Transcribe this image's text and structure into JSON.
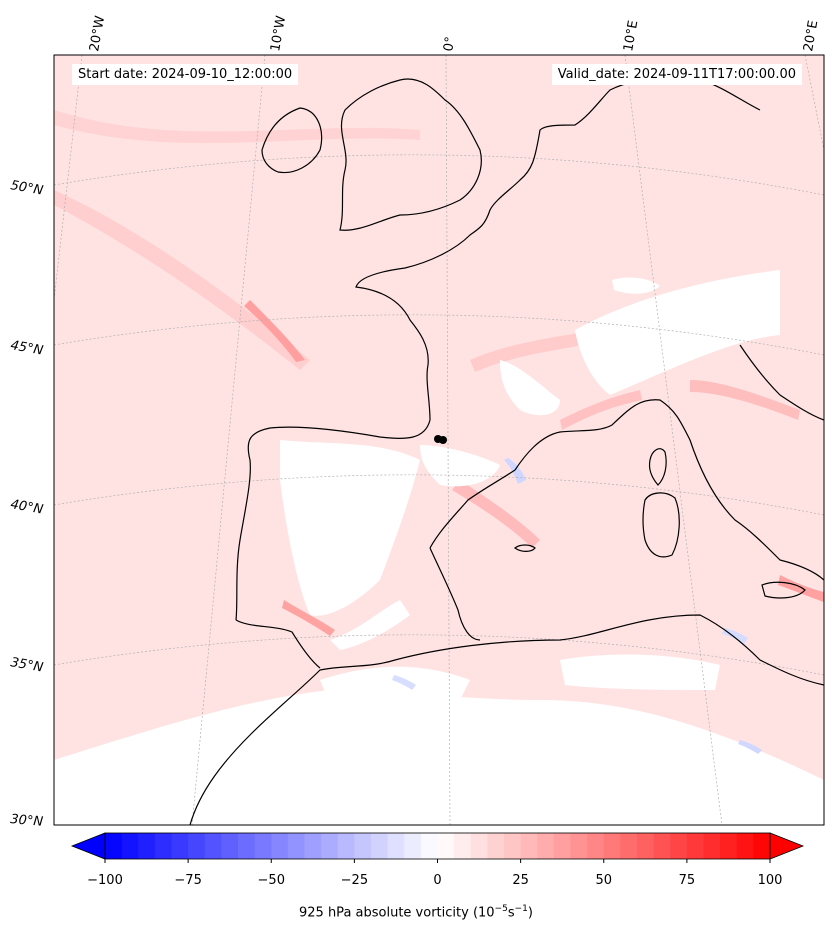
{
  "header": {
    "start_date": "Start date: 2024-09-10_12:00:00",
    "valid_date": "Valid_date: 2024-09-11T17:00:00.00"
  },
  "longitude_labels": [
    "20°W",
    "10°W",
    "0°",
    "10°E",
    "20°E"
  ],
  "latitude_labels": [
    "50°N",
    "45°N",
    "40°N",
    "35°N",
    "30°N"
  ],
  "colorbar": {
    "ticks": [
      "−100",
      "−75",
      "−50",
      "−25",
      "0",
      "25",
      "50",
      "75",
      "100"
    ],
    "min": -100,
    "max": 100,
    "levels": 40,
    "title_prefix": "925 hPa absolute vorticity (10",
    "title_exp1": "−5",
    "title_mid": "s",
    "title_exp2": "−1",
    "title_suffix": ")",
    "colormap": "bwr",
    "extend": "both"
  },
  "map": {
    "projection": "lambert-conformal",
    "field_color_dominant": "#ffe3e3",
    "coastline_color": "#000000",
    "gridline_style": "dotted-gray",
    "marker": "black-dot"
  }
}
